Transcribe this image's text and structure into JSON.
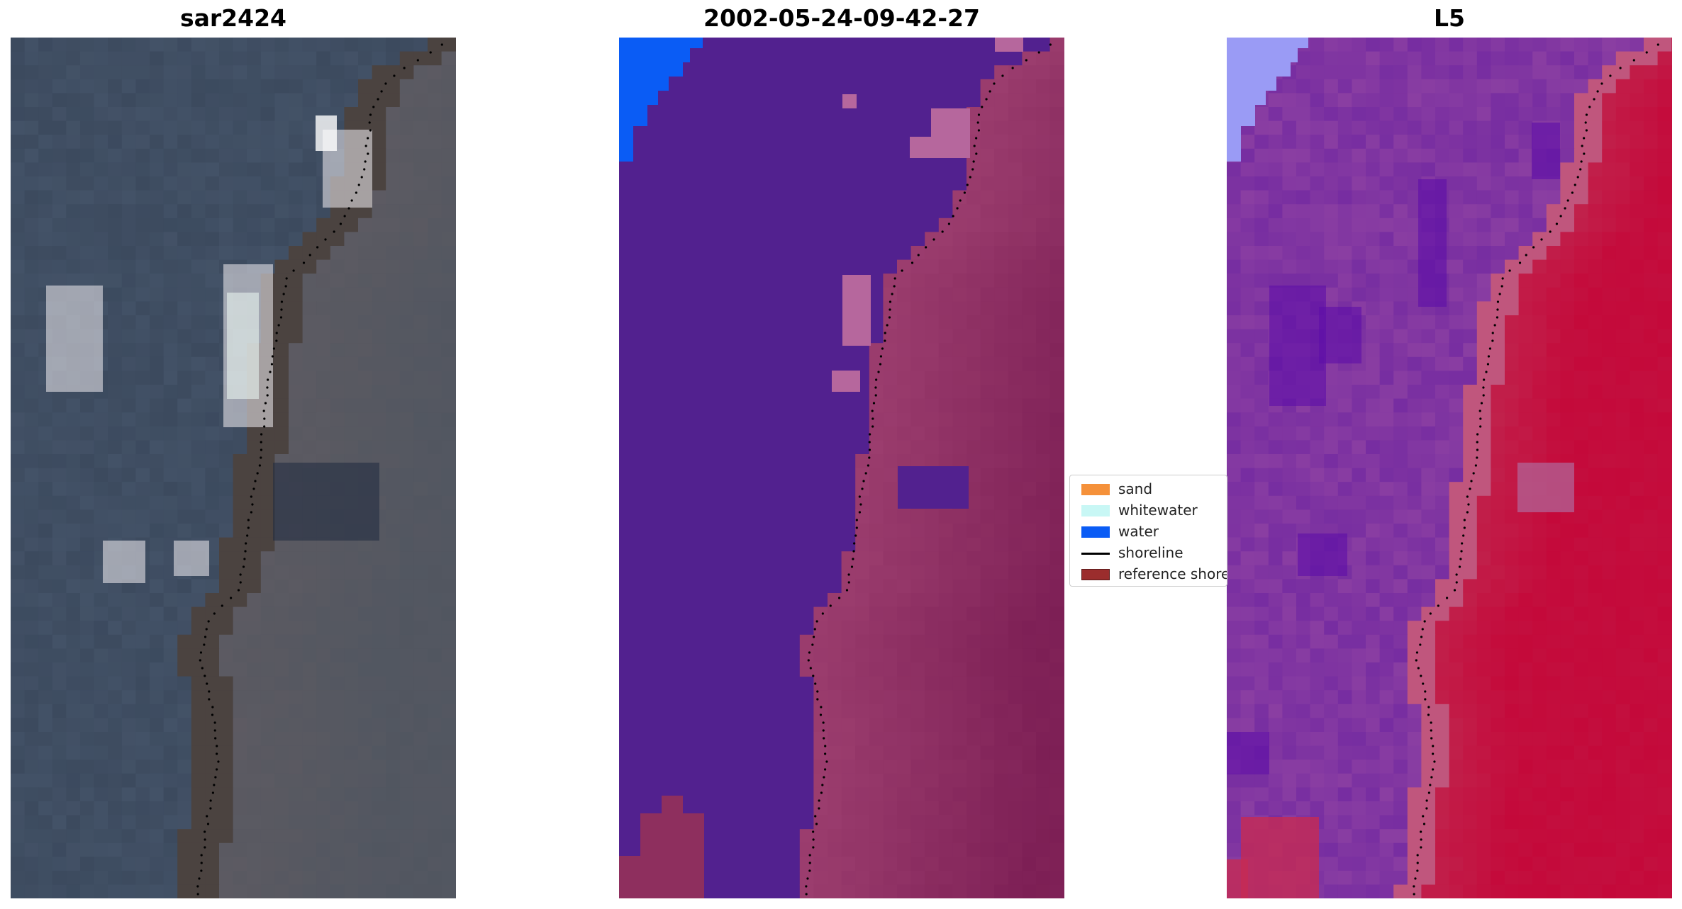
{
  "panels": [
    {
      "title": "sar2424",
      "kind": "rgb-composite"
    },
    {
      "title": "2002-05-24-09-42-27",
      "kind": "classification"
    },
    {
      "title": "L5",
      "kind": "index-map"
    }
  ],
  "legend": {
    "items": [
      {
        "label": "sand",
        "color": "#f5913a",
        "type": "patch"
      },
      {
        "label": "whitewater",
        "color": "#c8f7f5",
        "type": "patch"
      },
      {
        "label": "water",
        "color": "#0a5cf5",
        "type": "patch"
      },
      {
        "label": "shoreline",
        "color": "#000000",
        "type": "line"
      },
      {
        "label": "reference shoreline",
        "color": "#9b2d2d",
        "type": "patch"
      }
    ]
  },
  "colors": {
    "classified_water": "#0a5cf5",
    "classified_other": "#52218f",
    "classified_land": "#7d1f55",
    "classified_whitewater_overlay": "#b6679d",
    "index_water_light": "#9a9bf5",
    "index_purple": "#8a3ea2",
    "index_red": "#c4093a",
    "rgb_sea": "#3c4a5e",
    "rgb_land": "#5e5b62",
    "rgb_whitewater": "#f3eef2",
    "shoreline_dots": "#000000"
  }
}
